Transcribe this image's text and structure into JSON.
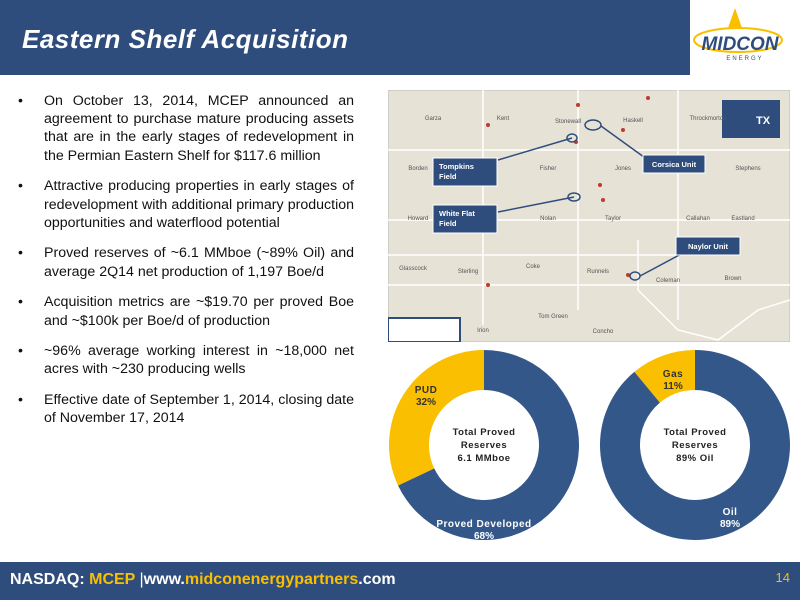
{
  "header": {
    "title": "Eastern Shelf Acquisition",
    "logo": "MIDCON",
    "logo_sub": "ENERGY"
  },
  "bullets": [
    "On October 13, 2014, MCEP announced an agreement to purchase mature producing assets that are in the early stages of redevelopment in the Permian Eastern Shelf for $117.6 million",
    "Attractive producing properties in early stages of redevelopment with additional primary production opportunities and waterflood potential",
    "Proved reserves of ~6.1 MMboe (~89% Oil) and average 2Q14 net production of 1,197 Boe/d",
    "Acquisition metrics are ~$19.70 per proved Boe and ~$100k per Boe/d of production",
    "~96% average working interest in ~18,000 net acres with ~230 producing wells",
    "Effective date of September 1, 2014, closing date of November 17, 2014"
  ],
  "map": {
    "counties": [
      "Garza",
      "Kent",
      "Stonewall",
      "Haskell",
      "Throckmorton",
      "Borden",
      "Fisher",
      "Jones",
      "Stephens",
      "Howard",
      "Nolan",
      "Taylor",
      "Callahan",
      "Eastland",
      "Glasscock",
      "Sterling",
      "Coke",
      "Runnels",
      "Coleman",
      "Brown",
      "Tom Green",
      "Irion",
      "Concho"
    ],
    "callouts": [
      "Tompkins Field",
      "Corsica Unit",
      "White Flat Field",
      "Naylor Unit"
    ],
    "state": "TX"
  },
  "chart_data": [
    {
      "type": "pie",
      "categories": [
        "Proved Developed",
        "PUD"
      ],
      "values": [
        68,
        32
      ],
      "value_labels": [
        "68%",
        "32%"
      ],
      "colors": [
        "#34578a",
        "#f9bf00"
      ],
      "center_text": [
        "Total Proved",
        "Reserves",
        "6.1 MMboe"
      ]
    },
    {
      "type": "pie",
      "categories": [
        "Oil",
        "Gas"
      ],
      "values": [
        89,
        11
      ],
      "value_labels": [
        "89%",
        "11%"
      ],
      "colors": [
        "#34578a",
        "#f9bf00"
      ],
      "center_text": [
        "Total Proved",
        "Reserves",
        "89% Oil"
      ]
    }
  ],
  "footer": {
    "exchange": "NASDAQ:",
    "ticker": "MCEP",
    "url_prefix": "www.",
    "url_name": "midconenergypartners",
    "url_suffix": ".com",
    "page": "14"
  }
}
